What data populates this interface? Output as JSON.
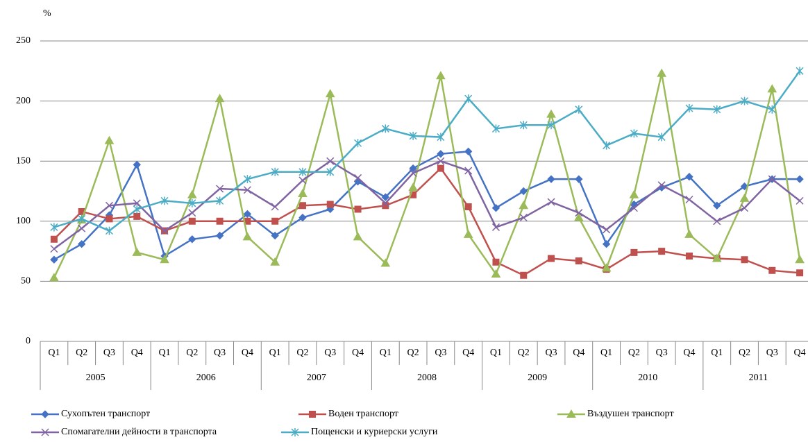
{
  "chart_data": {
    "type": "line",
    "y_label": "%",
    "categories": [
      "Q1",
      "Q2",
      "Q3",
      "Q4",
      "Q1",
      "Q2",
      "Q3",
      "Q4",
      "Q1",
      "Q2",
      "Q3",
      "Q4",
      "Q1",
      "Q2",
      "Q3",
      "Q4",
      "Q1",
      "Q2",
      "Q3",
      "Q4",
      "Q1",
      "Q2",
      "Q3",
      "Q4",
      "Q1",
      "Q2",
      "Q3",
      "Q4"
    ],
    "category_groups": [
      "2005",
      "2006",
      "2007",
      "2008",
      "2009",
      "2010",
      "2011"
    ],
    "ylim": [
      0,
      250
    ],
    "yticks": [
      0,
      50,
      100,
      150,
      200,
      250
    ],
    "grid": true,
    "legend": "bottom",
    "series": [
      {
        "name": "Сухопътен транспорт",
        "color": "#4472c4",
        "marker": "diamond",
        "values": [
          68,
          81,
          105,
          147,
          71,
          85,
          88,
          106,
          88,
          103,
          110,
          133,
          120,
          144,
          156,
          158,
          111,
          125,
          135,
          135,
          81,
          114,
          128,
          137,
          113,
          129,
          135,
          135
        ]
      },
      {
        "name": "Воден транспорт",
        "color": "#c0504d",
        "marker": "square",
        "values": [
          85,
          108,
          102,
          104,
          92,
          100,
          100,
          100,
          100,
          113,
          114,
          110,
          113,
          122,
          144,
          112,
          66,
          55,
          69,
          67,
          60,
          74,
          75,
          71,
          69,
          68,
          59,
          57
        ]
      },
      {
        "name": "Въздушен транспорт",
        "color": "#9bbb59",
        "marker": "triangle",
        "values": [
          53,
          101,
          167,
          74,
          68,
          122,
          202,
          87,
          66,
          123,
          206,
          87,
          65,
          128,
          221,
          89,
          56,
          113,
          189,
          103,
          61,
          122,
          223,
          89,
          69,
          119,
          210,
          68
        ]
      },
      {
        "name": "Спомагателни дейности в транспорта",
        "color": "#8064a2",
        "marker": "x",
        "values": [
          77,
          94,
          113,
          115,
          92,
          107,
          127,
          126,
          112,
          134,
          150,
          136,
          115,
          140,
          150,
          142,
          95,
          103,
          116,
          107,
          93,
          111,
          130,
          118,
          100,
          111,
          135,
          117
        ]
      },
      {
        "name": "Пощенски и куриерски услуги",
        "color": "#4bacc6",
        "marker": "star",
        "values": [
          95,
          102,
          92,
          110,
          117,
          115,
          117,
          135,
          141,
          141,
          141,
          165,
          177,
          171,
          170,
          202,
          177,
          180,
          180,
          193,
          163,
          173,
          170,
          194,
          193,
          200,
          193,
          225
        ]
      }
    ]
  }
}
